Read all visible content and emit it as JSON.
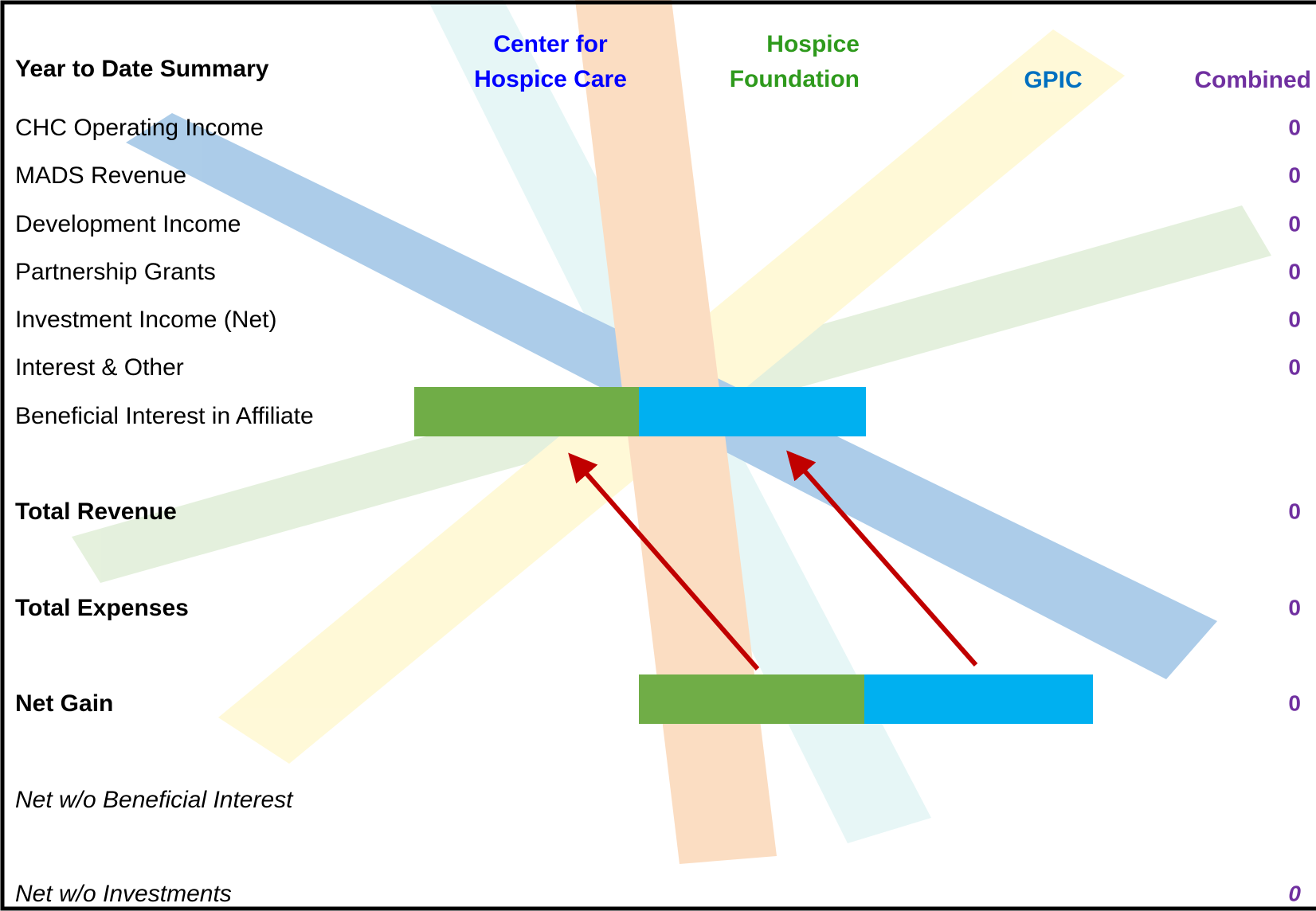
{
  "header": {
    "title": "Year to Date Summary"
  },
  "table": {
    "columns": [
      {
        "lines": [
          "Center for",
          "Hospice Care"
        ],
        "color": "#0000ff"
      },
      {
        "lines": [
          "Hospice",
          "Foundation"
        ],
        "color": "#2e9a1c"
      },
      {
        "lines": [
          "GPIC"
        ],
        "color": "#0070c0"
      },
      {
        "lines": [
          "Combined"
        ],
        "color": "#7030a0"
      }
    ],
    "rows": [
      {
        "label": "CHC Operating Income",
        "combined": "0"
      },
      {
        "label": "MADS Revenue",
        "combined": "0"
      },
      {
        "label": "Development Income",
        "combined": "0"
      },
      {
        "label": "Partnership Grants",
        "combined": "0"
      },
      {
        "label": "Investment Income (Net)",
        "combined": "0"
      },
      {
        "label": "Interest & Other",
        "combined": "0"
      },
      {
        "label": "Beneficial Interest in Affiliate"
      },
      {
        "label": "Total Revenue",
        "combined": "0",
        "style": "bold"
      },
      {
        "label": "Total Expenses",
        "combined": "0",
        "style": "bold"
      },
      {
        "label": "Net Gain",
        "combined": "0",
        "style": "bold"
      },
      {
        "label": "Net w/o Beneficial Interest",
        "style": "italic"
      },
      {
        "label": "Net w/o Investments",
        "combined": "0",
        "style": "italic"
      }
    ]
  }
}
